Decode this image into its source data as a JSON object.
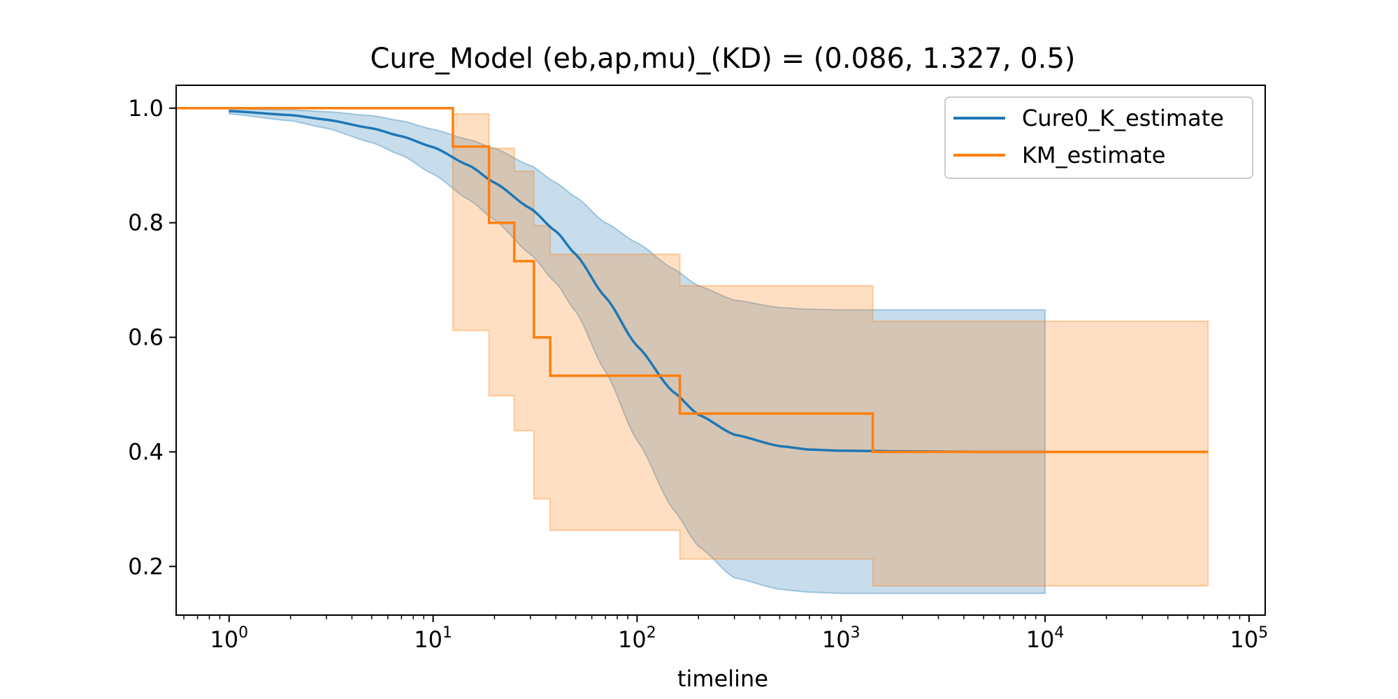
{
  "chart_data": {
    "type": "line",
    "title": "Cure_Model (eb,ap,mu)_(KD) = (0.086, 1.327, 0.5)",
    "xlabel": "timeline",
    "ylabel": "",
    "xscale": "log",
    "xlim": [
      0.55,
      120000
    ],
    "ylim": [
      0.115,
      1.04
    ],
    "xticks": [
      {
        "value": 1,
        "mantissa": "10",
        "exp": "0"
      },
      {
        "value": 10,
        "mantissa": "10",
        "exp": "1"
      },
      {
        "value": 100,
        "mantissa": "10",
        "exp": "2"
      },
      {
        "value": 1000,
        "mantissa": "10",
        "exp": "3"
      },
      {
        "value": 10000,
        "mantissa": "10",
        "exp": "4"
      },
      {
        "value": 100000,
        "mantissa": "10",
        "exp": "5"
      }
    ],
    "yticks": [
      {
        "value": 0.2,
        "label": "0.2"
      },
      {
        "value": 0.4,
        "label": "0.4"
      },
      {
        "value": 0.6,
        "label": "0.6"
      },
      {
        "value": 0.8,
        "label": "0.8"
      },
      {
        "value": 1.0,
        "label": "1.0"
      }
    ],
    "grid": false,
    "legend_position": "top-right",
    "series": [
      {
        "name": "Cure0_K_estimate",
        "kind": "smooth",
        "color": "#1f77b4",
        "x": [
          1,
          2,
          3,
          5,
          7,
          10,
          15,
          20,
          30,
          40,
          50,
          70,
          100,
          150,
          200,
          300,
          500,
          700,
          1000,
          2000,
          5000,
          10000
        ],
        "y": [
          0.995,
          0.988,
          0.98,
          0.965,
          0.951,
          0.932,
          0.9,
          0.87,
          0.825,
          0.785,
          0.745,
          0.67,
          0.585,
          0.505,
          0.465,
          0.43,
          0.41,
          0.404,
          0.402,
          0.401,
          0.4,
          0.4
        ],
        "ci_upper": [
          0.999,
          0.997,
          0.994,
          0.987,
          0.978,
          0.963,
          0.945,
          0.93,
          0.9,
          0.87,
          0.845,
          0.8,
          0.765,
          0.72,
          0.69,
          0.665,
          0.652,
          0.649,
          0.648,
          0.648,
          0.648,
          0.648
        ],
        "ci_lower": [
          0.99,
          0.978,
          0.965,
          0.94,
          0.918,
          0.885,
          0.84,
          0.805,
          0.745,
          0.695,
          0.645,
          0.54,
          0.42,
          0.3,
          0.235,
          0.18,
          0.16,
          0.155,
          0.153,
          0.153,
          0.153,
          0.153
        ]
      },
      {
        "name": "KM_estimate",
        "kind": "step",
        "color": "#ff7f0e",
        "x": [
          0.55,
          12.5,
          18.8,
          25,
          31.2,
          37.5,
          162,
          1430,
          63000
        ],
        "y": [
          1.0,
          0.933,
          0.8,
          0.733,
          0.6,
          0.533,
          0.467,
          0.4,
          0.4
        ],
        "ci_upper": [
          1.0,
          0.99,
          0.93,
          0.89,
          0.795,
          0.745,
          0.69,
          0.628,
          0.628
        ],
        "ci_lower": [
          1.0,
          0.612,
          0.498,
          0.437,
          0.318,
          0.263,
          0.213,
          0.166,
          0.166
        ]
      }
    ]
  }
}
